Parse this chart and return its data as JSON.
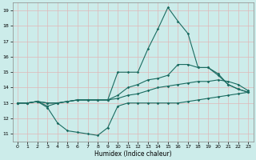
{
  "xlabel": "Humidex (Indice chaleur)",
  "xlim": [
    -0.5,
    23.5
  ],
  "ylim": [
    10.5,
    19.5
  ],
  "xticks": [
    0,
    1,
    2,
    3,
    4,
    5,
    6,
    7,
    8,
    9,
    10,
    11,
    12,
    13,
    14,
    15,
    16,
    17,
    18,
    19,
    20,
    21,
    22,
    23
  ],
  "yticks": [
    11,
    12,
    13,
    14,
    15,
    16,
    17,
    18,
    19
  ],
  "bg_color": "#ccecea",
  "grid_color": "#e0b8b8",
  "line_color": "#1a6b60",
  "line1": {
    "x": [
      0,
      1,
      2,
      3,
      4,
      5,
      6,
      7,
      8,
      9,
      10,
      11,
      12,
      13,
      14,
      15,
      16,
      17,
      18,
      19,
      20,
      21,
      22,
      23
    ],
    "y": [
      13,
      13,
      13.1,
      12.7,
      11.7,
      11.2,
      11.1,
      11.0,
      10.9,
      11.4,
      12.8,
      13.0,
      13.0,
      13.0,
      13.0,
      13.0,
      13.0,
      13.1,
      13.2,
      13.3,
      13.4,
      13.5,
      13.6,
      13.7
    ]
  },
  "line2": {
    "x": [
      0,
      1,
      2,
      3,
      4,
      5,
      6,
      7,
      8,
      9,
      10,
      11,
      12,
      13,
      14,
      15,
      16,
      17,
      18,
      19,
      20,
      21,
      22,
      23
    ],
    "y": [
      13,
      13,
      13.1,
      13.0,
      13.0,
      13.1,
      13.2,
      13.2,
      13.2,
      13.2,
      13.3,
      13.5,
      13.6,
      13.8,
      14.0,
      14.1,
      14.2,
      14.3,
      14.4,
      14.4,
      14.5,
      14.4,
      14.2,
      13.8
    ]
  },
  "line3": {
    "x": [
      0,
      1,
      2,
      3,
      4,
      5,
      6,
      7,
      8,
      9,
      10,
      11,
      12,
      13,
      14,
      15,
      16,
      17,
      18,
      19,
      20,
      21,
      22,
      23
    ],
    "y": [
      13,
      13,
      13.1,
      12.8,
      13.0,
      13.1,
      13.2,
      13.2,
      13.2,
      13.2,
      15.0,
      15.0,
      15.0,
      16.5,
      17.8,
      19.2,
      18.3,
      17.5,
      15.3,
      15.3,
      14.9,
      14.2,
      13.9,
      13.7
    ]
  },
  "line4": {
    "x": [
      0,
      1,
      2,
      3,
      4,
      5,
      6,
      7,
      8,
      9,
      10,
      11,
      12,
      13,
      14,
      15,
      16,
      17,
      18,
      19,
      20,
      21,
      22,
      23
    ],
    "y": [
      13,
      13,
      13.1,
      13.0,
      13.0,
      13.1,
      13.2,
      13.2,
      13.2,
      13.2,
      13.5,
      14.0,
      14.2,
      14.5,
      14.6,
      14.8,
      15.5,
      15.5,
      15.3,
      15.3,
      14.8,
      14.2,
      13.9,
      13.7
    ]
  }
}
